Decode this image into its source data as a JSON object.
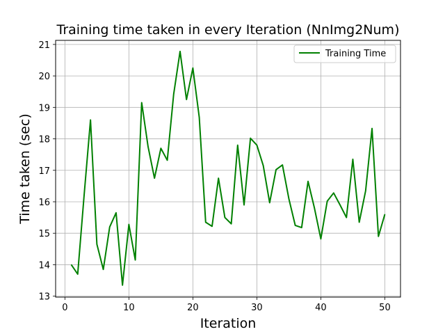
{
  "chart_data": {
    "type": "line",
    "title": "Training time taken in every Iteration (NnImg2Num)",
    "xlabel": "Iteration",
    "ylabel": "Time taken (sec)",
    "xlim": [
      -1.45,
      52.45
    ],
    "ylim": [
      12.97,
      21.13
    ],
    "xticks": [
      0,
      10,
      20,
      30,
      40,
      50
    ],
    "yticks": [
      13,
      14,
      15,
      16,
      17,
      18,
      19,
      20,
      21
    ],
    "grid": true,
    "legend_position": "top-right",
    "series": [
      {
        "name": "Training Time",
        "color": "#008000",
        "x": [
          1,
          2,
          3,
          4,
          5,
          6,
          7,
          8,
          9,
          10,
          11,
          12,
          13,
          14,
          15,
          16,
          17,
          18,
          19,
          20,
          21,
          22,
          23,
          24,
          25,
          26,
          27,
          28,
          29,
          30,
          31,
          32,
          33,
          34,
          35,
          36,
          37,
          38,
          39,
          40,
          41,
          42,
          43,
          44,
          45,
          46,
          47,
          48,
          49,
          50
        ],
        "y": [
          14.0,
          13.7,
          16.2,
          18.6,
          14.65,
          13.85,
          15.2,
          15.65,
          13.35,
          15.28,
          14.15,
          19.15,
          17.75,
          16.75,
          17.7,
          17.32,
          19.42,
          20.78,
          19.25,
          20.25,
          18.68,
          15.35,
          15.22,
          16.75,
          15.5,
          15.3,
          17.8,
          15.9,
          18.02,
          17.8,
          17.15,
          15.97,
          17.02,
          17.17,
          16.1,
          15.25,
          15.18,
          16.65,
          15.8,
          14.82,
          16.02,
          16.28,
          15.9,
          15.5,
          17.35,
          15.35,
          16.35,
          18.33,
          14.9,
          15.6
        ]
      }
    ]
  }
}
